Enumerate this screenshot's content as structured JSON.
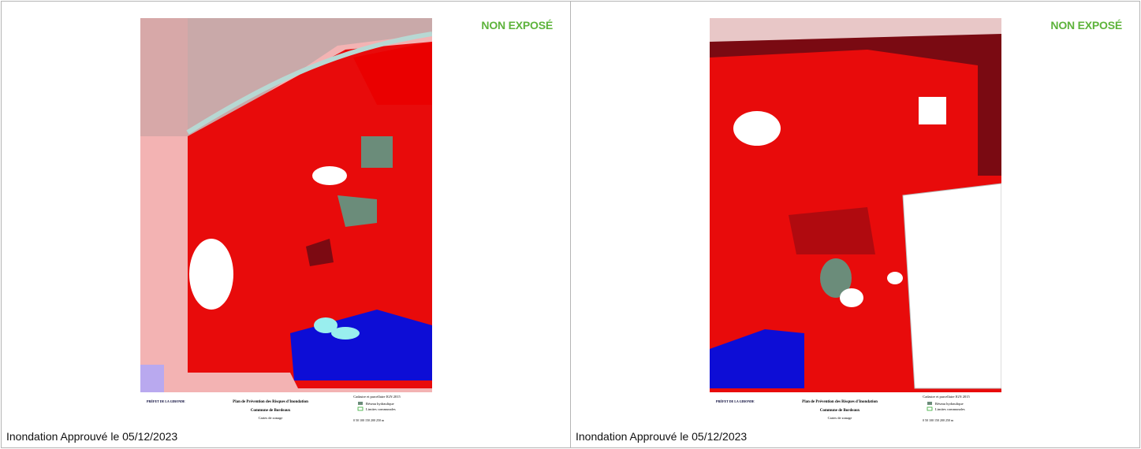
{
  "panels": [
    {
      "status": "NON EXPOSÉ",
      "caption": "Inondation Approuvé le 05/12/2023",
      "map": {
        "title": "Plan de Prévention des Risques d'Inondation",
        "commune": "Commune de Bordeaux",
        "subtitle": "Cartes de zonage",
        "prefet": "PRÉFET DE LA GIRONDE",
        "legend_title": "Cadastre et parcellaire IGN 2015",
        "legend": [
          "Réseau hydraulique",
          "Limites communales"
        ],
        "scale": "0 50 100 150 200 250 m"
      }
    },
    {
      "status": "NON EXPOSÉ",
      "caption": "Inondation Approuvé le 05/12/2023",
      "map": {
        "title": "Plan de Prévention des Risques d'Inondation",
        "commune": "Commune de Bordeaux",
        "subtitle": "Cartes de zonage",
        "prefet": "PRÉFET DE LA GIRONDE",
        "legend_title": "Cadastre et parcellaire IGN 2015",
        "legend": [
          "Réseau hydraulique",
          "Limites communales"
        ],
        "scale": "0 50 100 150 200 250 m"
      }
    }
  ]
}
